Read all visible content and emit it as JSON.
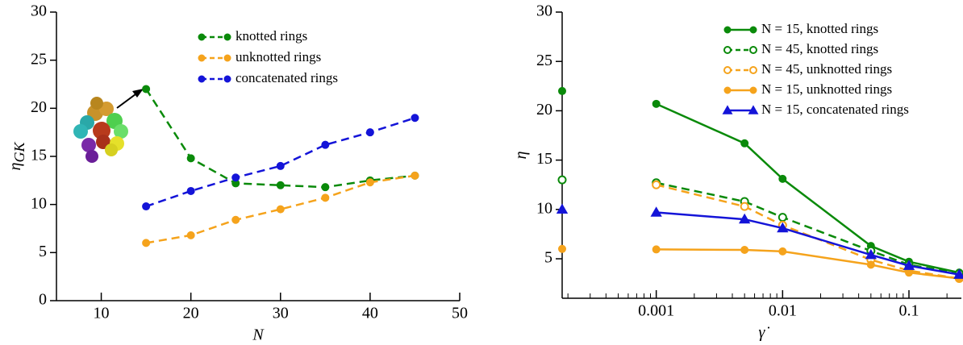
{
  "chart_data": [
    {
      "type": "line",
      "xlabel": "N",
      "ylabel": "η",
      "ylabel_sub": "GK",
      "legend": "upper center",
      "xlim": [
        5,
        50
      ],
      "xticks": [
        10,
        20,
        30,
        40,
        50
      ],
      "ylim": [
        0,
        30
      ],
      "yticks": [
        0,
        5,
        10,
        15,
        20,
        25,
        30
      ],
      "x": [
        15,
        20,
        25,
        30,
        35,
        40,
        45
      ],
      "series": [
        {
          "name": "knotted rings",
          "color": "#0a8a0a",
          "marker": "circle",
          "filled": true,
          "dashed": true,
          "values": [
            22,
            14.8,
            12.2,
            12.0,
            11.8,
            12.5,
            13.0
          ]
        },
        {
          "name": "unknotted rings",
          "color": "#f5a31c",
          "marker": "circle",
          "filled": true,
          "dashed": true,
          "values": [
            6.0,
            6.8,
            8.4,
            9.5,
            10.7,
            12.3,
            13.0
          ]
        },
        {
          "name": "concatenated rings",
          "color": "#1414d8",
          "marker": "circle",
          "filled": true,
          "dashed": true,
          "values": [
            9.8,
            11.4,
            12.8,
            14.0,
            16.2,
            17.5,
            19.0
          ]
        }
      ]
    },
    {
      "type": "line",
      "xlabel": "γ̇",
      "ylabel": "η",
      "legend": "upper right",
      "log_x": true,
      "xlim": [
        0.00018,
        0.26
      ],
      "xticks": [
        0.001,
        0.01,
        0.1
      ],
      "xminorticks": [
        0.0002,
        0.0003,
        0.0004,
        0.0005,
        0.0006,
        0.0007,
        0.0008,
        0.0009,
        0.002,
        0.003,
        0.004,
        0.005,
        0.006,
        0.007,
        0.008,
        0.009,
        0.02,
        0.03,
        0.04,
        0.05,
        0.06,
        0.07,
        0.08,
        0.09,
        0.2
      ],
      "ylim": [
        1,
        30
      ],
      "yticks": [
        5,
        10,
        15,
        20,
        25,
        30
      ],
      "x": [
        0.001,
        0.005,
        0.01,
        0.05,
        0.1,
        0.25
      ],
      "series": [
        {
          "name": "N = 15, knotted rings",
          "color": "#0a8a0a",
          "marker": "circle",
          "filled": true,
          "dashed": false,
          "zero_shear_value": 22,
          "values": [
            20.7,
            16.7,
            13.1,
            6.3,
            4.7,
            3.6
          ]
        },
        {
          "name": "N = 45, knotted rings",
          "color": "#0a8a0a",
          "marker": "circle",
          "filled": false,
          "dashed": true,
          "zero_shear_value": 13,
          "values": [
            12.7,
            10.8,
            9.2,
            5.8,
            4.4,
            3.5
          ]
        },
        {
          "name": "N = 45, unknotted rings",
          "color": "#f5a31c",
          "marker": "circle",
          "filled": false,
          "dashed": true,
          "values": [
            12.5,
            10.3,
            8.4,
            4.9,
            3.8,
            3.0
          ]
        },
        {
          "name": "N = 15, unknotted rings",
          "color": "#f5a31c",
          "marker": "circle",
          "filled": true,
          "dashed": false,
          "zero_shear_value": 6,
          "values": [
            5.95,
            5.9,
            5.75,
            4.4,
            3.6,
            3.0
          ]
        },
        {
          "name": "N = 15, concatenated rings",
          "color": "#1414d8",
          "marker": "triangle",
          "filled": true,
          "dashed": false,
          "zero_shear_value": 10,
          "values": [
            9.7,
            9.0,
            8.1,
            5.4,
            4.3,
            3.4
          ]
        }
      ]
    }
  ]
}
